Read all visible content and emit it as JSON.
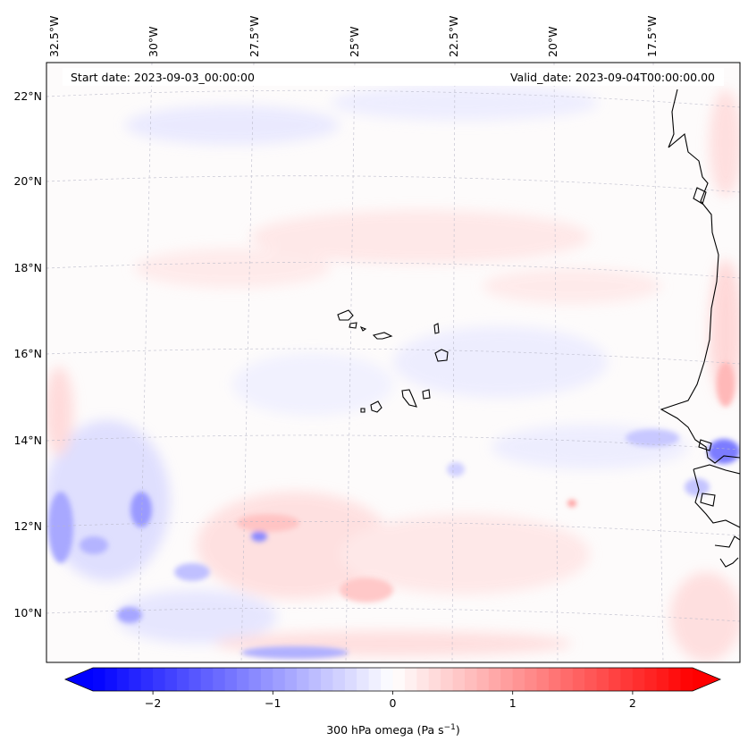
{
  "map": {
    "start_date": "Start date: 2023-09-03_00:00:00",
    "valid_date": "Valid_date: 2023-09-04T00:00:00.00",
    "field": "300 hPa omega",
    "lon_labels": [
      "32.5°W",
      "30°W",
      "27.5°W",
      "25°W",
      "22.5°W",
      "20°W",
      "17.5°W"
    ],
    "lat_labels": [
      "22°N",
      "20°N",
      "18°N",
      "16°N",
      "14°N",
      "12°N",
      "10°N"
    ],
    "colorbar": {
      "label_main": "300 hPa omega (Pa s",
      "label_sup": "−1",
      "label_end": ")",
      "ticks": [
        "−2",
        "−1",
        "0",
        "1",
        "2"
      ],
      "tick_values": [
        -2,
        -1,
        0,
        1,
        2
      ],
      "range": [
        -2.5,
        2.5
      ],
      "low_color": "#0000ff",
      "mid_color": "#ffffff",
      "high_color": "#ff0000"
    },
    "colors": {
      "frame": "#000000",
      "grid": "#b8b8c8",
      "coast": "#000000"
    }
  }
}
